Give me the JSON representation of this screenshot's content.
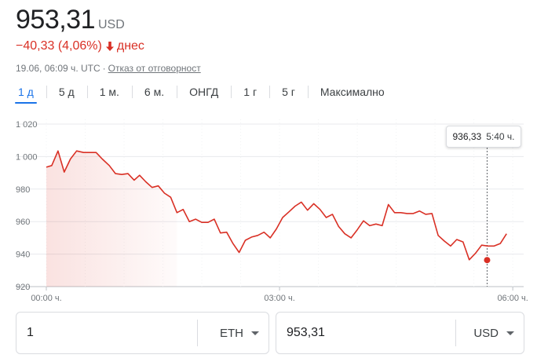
{
  "quote": {
    "price": "953,31",
    "currency": "USD",
    "change": "−40,33 (4,06%)",
    "change_period": "днес",
    "timestamp": "19.06, 06:09 ч. UTC",
    "separator": "·",
    "disclaimer": "Отказ от отговорност",
    "colors": {
      "negative": "#d93025",
      "accent": "#1a73e8"
    }
  },
  "tabs": [
    {
      "label": "1 д",
      "active": true
    },
    {
      "label": "5 д",
      "active": false
    },
    {
      "label": "1 м.",
      "active": false
    },
    {
      "label": "6 м.",
      "active": false
    },
    {
      "label": "ОНГД",
      "active": false
    },
    {
      "label": "1 г",
      "active": false
    },
    {
      "label": "5 г",
      "active": false
    },
    {
      "label": "Максимално",
      "active": false
    }
  ],
  "tooltip": {
    "value": "936,33",
    "time": "5:40 ч."
  },
  "converter": {
    "left": {
      "value": "1",
      "unit": "ETH"
    },
    "right": {
      "value": "953,31",
      "unit": "USD"
    }
  },
  "chart_data": {
    "type": "line",
    "title": "",
    "xlabel": "",
    "ylabel": "",
    "x_ticks": [
      {
        "label": "00:00 ч.",
        "hour": 0
      },
      {
        "label": "03:00 ч.",
        "hour": 3
      },
      {
        "label": "06:00 ч.",
        "hour": 6
      }
    ],
    "y_ticks": [
      {
        "label": "1 020",
        "value": 1020
      },
      {
        "label": "1 000",
        "value": 1000
      },
      {
        "label": "980",
        "value": 980
      },
      {
        "label": "960",
        "value": 960
      },
      {
        "label": "940",
        "value": 940
      },
      {
        "label": "920",
        "value": 920
      }
    ],
    "xlim": [
      0,
      6.14
    ],
    "ylim": [
      920,
      1020
    ],
    "grid": true,
    "line_color": "#d93025",
    "highlight": {
      "hour": 5.67,
      "value": 936.33
    },
    "series": [
      {
        "values": [
          [
            0.0,
            993.5
          ],
          [
            0.07,
            994.5
          ],
          [
            0.15,
            1003.5
          ],
          [
            0.23,
            990.5
          ],
          [
            0.31,
            998.5
          ],
          [
            0.39,
            1003.5
          ],
          [
            0.48,
            1002.5
          ],
          [
            0.56,
            1002.5
          ],
          [
            0.64,
            1002.5
          ],
          [
            0.72,
            998.5
          ],
          [
            0.81,
            994.5
          ],
          [
            0.89,
            989.5
          ],
          [
            0.97,
            989.0
          ],
          [
            1.05,
            989.5
          ],
          [
            1.13,
            985.5
          ],
          [
            1.2,
            988.5
          ],
          [
            1.28,
            984.5
          ],
          [
            1.36,
            981.0
          ],
          [
            1.44,
            982.0
          ],
          [
            1.52,
            977.5
          ],
          [
            1.6,
            975.0
          ],
          [
            1.68,
            965.5
          ],
          [
            1.76,
            967.5
          ],
          [
            1.84,
            960.0
          ],
          [
            1.92,
            961.5
          ],
          [
            2.0,
            959.5
          ],
          [
            2.08,
            959.5
          ],
          [
            2.16,
            961.5
          ],
          [
            2.24,
            953.0
          ],
          [
            2.32,
            953.5
          ],
          [
            2.4,
            946.5
          ],
          [
            2.48,
            941.0
          ],
          [
            2.56,
            948.5
          ],
          [
            2.64,
            950.5
          ],
          [
            2.72,
            951.5
          ],
          [
            2.8,
            953.5
          ],
          [
            2.88,
            950.0
          ],
          [
            2.96,
            955.5
          ],
          [
            3.04,
            962.5
          ],
          [
            3.12,
            966.0
          ],
          [
            3.2,
            969.5
          ],
          [
            3.28,
            972.0
          ],
          [
            3.36,
            967.0
          ],
          [
            3.44,
            971.0
          ],
          [
            3.52,
            967.5
          ],
          [
            3.6,
            962.5
          ],
          [
            3.68,
            964.5
          ],
          [
            3.76,
            957.0
          ],
          [
            3.84,
            952.5
          ],
          [
            3.92,
            950.0
          ],
          [
            4.0,
            955.0
          ],
          [
            4.08,
            960.5
          ],
          [
            4.16,
            957.5
          ],
          [
            4.24,
            958.5
          ],
          [
            4.32,
            957.5
          ],
          [
            4.4,
            970.5
          ],
          [
            4.48,
            965.5
          ],
          [
            4.56,
            965.5
          ],
          [
            4.64,
            965.0
          ],
          [
            4.72,
            965.0
          ],
          [
            4.8,
            966.5
          ],
          [
            4.88,
            964.5
          ],
          [
            4.96,
            965.0
          ],
          [
            5.04,
            951.5
          ],
          [
            5.12,
            948.0
          ],
          [
            5.2,
            945.0
          ],
          [
            5.28,
            949.0
          ],
          [
            5.36,
            947.5
          ],
          [
            5.44,
            936.5
          ],
          [
            5.52,
            940.5
          ],
          [
            5.6,
            945.5
          ],
          [
            5.68,
            945.0
          ],
          [
            5.76,
            945.0
          ],
          [
            5.84,
            946.5
          ],
          [
            5.92,
            952.5
          ]
        ]
      }
    ]
  }
}
